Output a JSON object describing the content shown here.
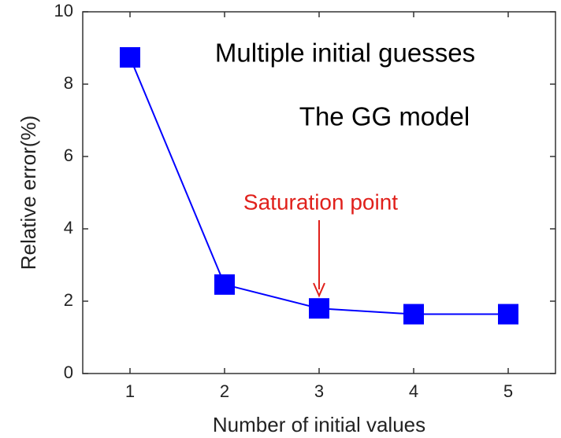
{
  "chart_data": {
    "type": "line",
    "xlabel": "Number of initial values",
    "ylabel": "Relative error(%)",
    "x": [
      1,
      2,
      3,
      4,
      5
    ],
    "series": [
      {
        "color": "#0000ff",
        "values": [
          8.74,
          2.46,
          1.8,
          1.64,
          1.64
        ]
      }
    ],
    "xlim": [
      0.5,
      5.5
    ],
    "xticks": [
      1,
      2,
      3,
      4,
      5
    ],
    "ylim": [
      0,
      10
    ],
    "yticks": [
      0,
      2,
      4,
      6,
      8,
      10
    ],
    "annotations": [
      "Multiple initial guesses",
      "The GG model",
      "Saturation point"
    ],
    "grid": false
  }
}
